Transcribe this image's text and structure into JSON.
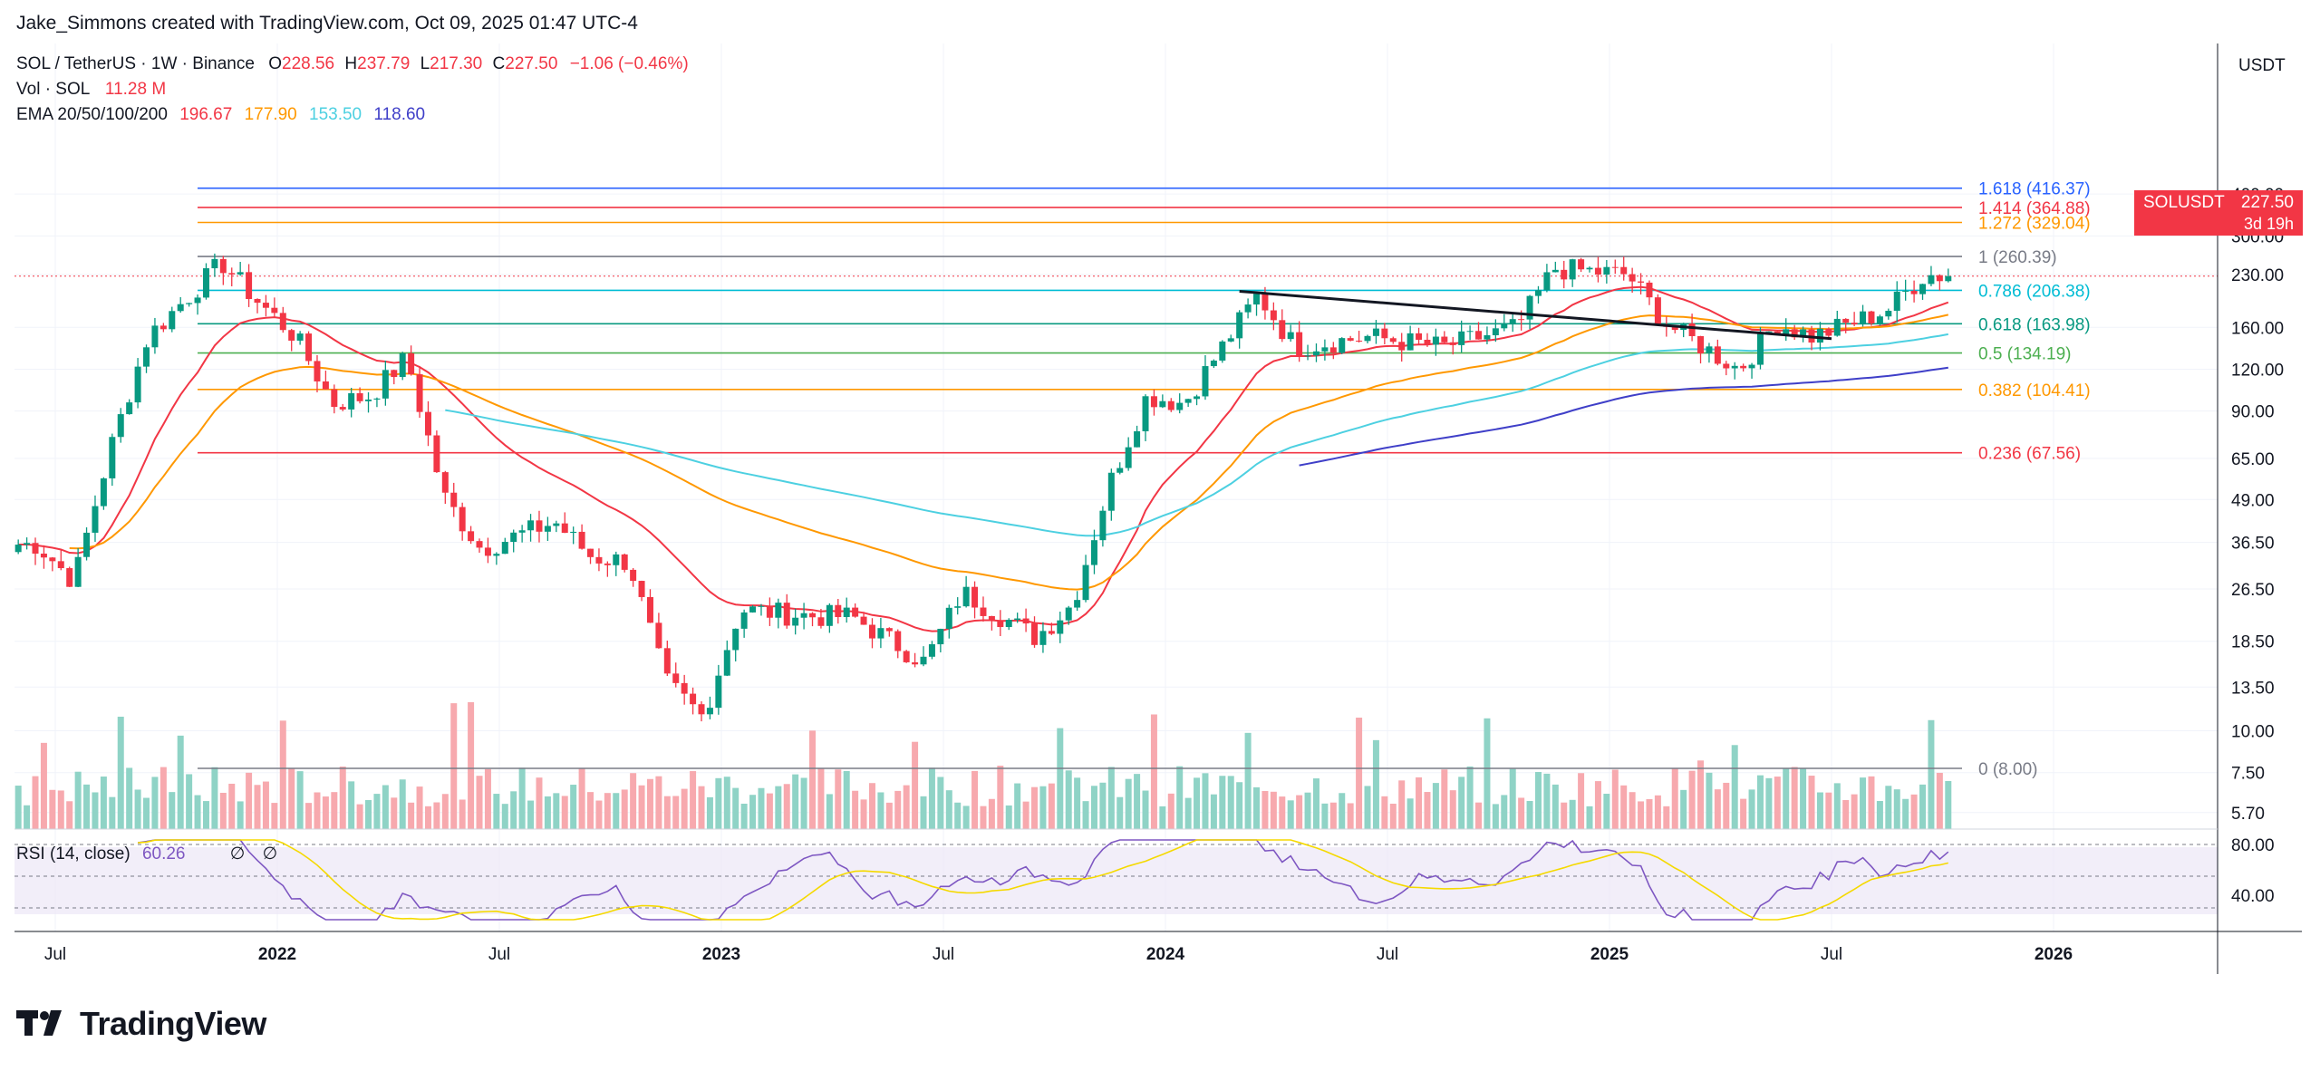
{
  "credit": "Jake_Simmons created with TradingView.com, Oct 09, 2025 01:47 UTC-4",
  "header": {
    "symbol": "SOL / TetherUS · 1W · Binance",
    "o_label": "O",
    "o_value": "228.56",
    "h_label": "H",
    "h_value": "237.79",
    "l_label": "L",
    "l_value": "217.30",
    "c_label": "C",
    "c_value": "227.50",
    "change": "−1.06 (−0.46%)",
    "vol_label": "Vol · SOL",
    "vol_value": "11.28 M",
    "ema_label": "EMA 20/50/100/200",
    "ema_values": [
      "196.67",
      "177.90",
      "153.50",
      "118.60"
    ],
    "rsi_label": "RSI (14, close)",
    "rsi_value": "60.26",
    "rsi_extra": [
      "∅",
      "∅"
    ]
  },
  "currency": "USDT",
  "price_tag": {
    "symbol": "SOLUSDT",
    "value": "227.50",
    "countdown": "3d 19h"
  },
  "brand": "TradingView",
  "colors": {
    "up": "#089981",
    "down": "#f23645",
    "ema20": "#f23645",
    "ema50": "#ff9800",
    "ema100": "#4dd0e1",
    "ema200": "#3f3fc8",
    "rsi": "#7e57c2",
    "rsi_ma": "#f5d900"
  },
  "chart_data": {
    "type": "candlestick",
    "scale": "log",
    "price_ticks": [
      "400.00",
      "300.00",
      "230.00",
      "160.00",
      "120.00",
      "90.00",
      "65.00",
      "49.00",
      "36.50",
      "26.50",
      "18.50",
      "13.50",
      "10.00",
      "7.50",
      "5.70"
    ],
    "time_ticks": [
      "Jul",
      "2022",
      "Jul",
      "2023",
      "Jul",
      "2024",
      "Jul",
      "2025",
      "Jul",
      "2026"
    ],
    "rsi_ticks": [
      "80.00",
      "40.00"
    ],
    "fib_levels": [
      {
        "label": "1.618 (416.37)",
        "value": 416.37,
        "color": "#2962ff"
      },
      {
        "label": "1.414 (364.88)",
        "value": 364.88,
        "color": "#f23645"
      },
      {
        "label": "1.272 (329.04)",
        "value": 329.04,
        "color": "#ff9800"
      },
      {
        "label": "1 (260.39)",
        "value": 260.39,
        "color": "#787b86"
      },
      {
        "label": "0.786 (206.38)",
        "value": 206.38,
        "color": "#00bcd4"
      },
      {
        "label": "0.618 (163.98)",
        "value": 163.98,
        "color": "#089981"
      },
      {
        "label": "0.5 (134.19)",
        "value": 134.19,
        "color": "#4caf50"
      },
      {
        "label": "0.382 (104.41)",
        "value": 104.41,
        "color": "#ff9800"
      },
      {
        "label": "0.236 (67.56)",
        "value": 67.56,
        "color": "#f23645"
      },
      {
        "label": "0 (8.00)",
        "value": 8.0,
        "color": "#787b86"
      }
    ],
    "trendline": {
      "from": [
        "2024-03",
        205
      ],
      "to": [
        "2025-07",
        148
      ]
    },
    "weekly_close_path": [
      [
        "2021-06",
        36
      ],
      [
        "2021-07",
        28
      ],
      [
        "2021-08",
        70
      ],
      [
        "2021-09",
        150
      ],
      [
        "2021-11",
        250
      ],
      [
        "2021-12",
        190
      ],
      [
        "2022-01",
        150
      ],
      [
        "2022-02",
        95
      ],
      [
        "2022-03",
        100
      ],
      [
        "2022-04",
        130
      ],
      [
        "2022-05",
        50
      ],
      [
        "2022-06",
        35
      ],
      [
        "2022-08",
        42
      ],
      [
        "2022-09",
        33
      ],
      [
        "2022-10",
        32
      ],
      [
        "2022-11",
        14
      ],
      [
        "2022-12",
        11
      ],
      [
        "2023-01",
        23
      ],
      [
        "2023-03",
        22
      ],
      [
        "2023-04",
        22
      ],
      [
        "2023-06",
        16
      ],
      [
        "2023-07",
        26
      ],
      [
        "2023-09",
        19
      ],
      [
        "2023-10",
        24
      ],
      [
        "2023-11",
        55
      ],
      [
        "2023-12",
        100
      ],
      [
        "2024-01",
        95
      ],
      [
        "2024-03",
        200
      ],
      [
        "2024-04",
        140
      ],
      [
        "2024-06",
        150
      ],
      [
        "2024-08",
        140
      ],
      [
        "2024-10",
        160
      ],
      [
        "2024-11",
        240
      ],
      [
        "2025-01",
        230
      ],
      [
        "2025-02",
        165
      ],
      [
        "2025-04",
        120
      ],
      [
        "2025-05",
        165
      ],
      [
        "2025-06",
        150
      ],
      [
        "2025-08",
        180
      ],
      [
        "2025-09",
        230
      ],
      [
        "2025-10",
        227.5
      ]
    ]
  }
}
